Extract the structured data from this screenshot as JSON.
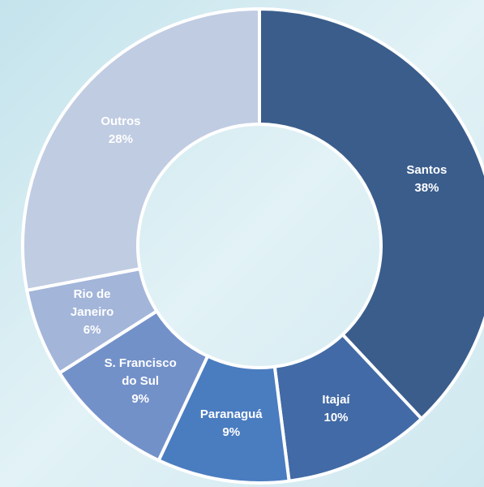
{
  "chart_data": {
    "type": "donut",
    "categories": [
      "Santos",
      "Itajaí",
      "Paranaguá",
      "S. Francisco do Sul",
      "Rio de Janeiro",
      "Outros"
    ],
    "values": [
      38,
      10,
      9,
      9,
      6,
      28
    ],
    "value_labels": [
      "38%",
      "10%",
      "9%",
      "9%",
      "6%",
      "28%"
    ],
    "colors": [
      "#3a5d8c",
      "#416aa6",
      "#4a7cc0",
      "#7391c9",
      "#a3b5d9",
      "#c0cce2"
    ]
  }
}
